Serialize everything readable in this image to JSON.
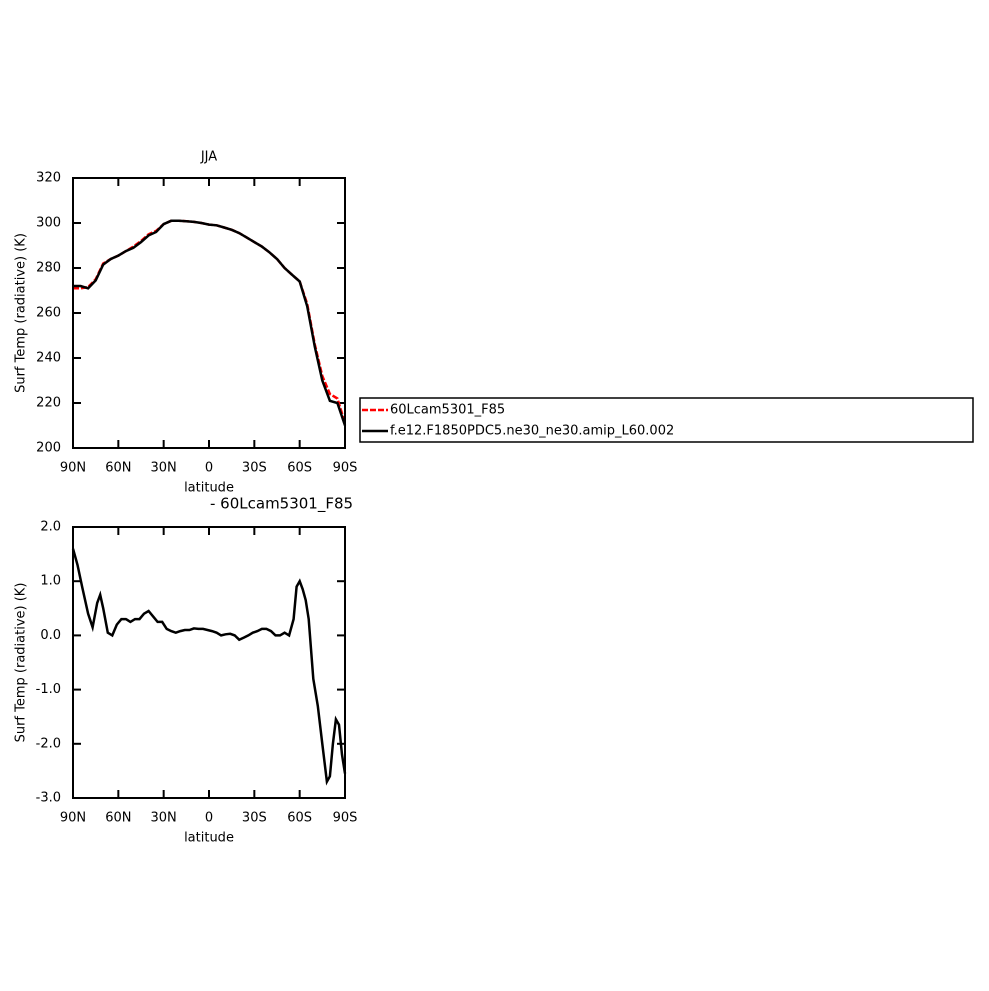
{
  "chart_data": [
    {
      "type": "line",
      "title": "JJA",
      "x_label": "latitude",
      "y_label": "Surf Temp (radiative) (K)",
      "x": [
        90,
        85,
        80,
        75,
        70,
        65,
        60,
        55,
        50,
        45,
        40,
        35,
        30,
        25,
        20,
        15,
        10,
        5,
        0,
        -5,
        -10,
        -15,
        -20,
        -25,
        -30,
        -35,
        -40,
        -45,
        -50,
        -55,
        -60,
        -65,
        -70,
        -75,
        -80,
        -85,
        -90
      ],
      "series": [
        {
          "name": "60Lcam5301_F85",
          "color": "#ff0000",
          "dashed": true,
          "values": [
            271,
            271,
            271.5,
            275,
            282,
            284,
            285.5,
            287.5,
            289.5,
            292,
            295,
            296.5,
            299.5,
            301,
            301,
            300.8,
            300.5,
            300,
            299.3,
            299,
            298,
            297,
            295.5,
            293.5,
            291.5,
            289.5,
            287,
            284,
            280,
            277,
            274,
            264,
            246,
            232,
            224,
            222,
            211
          ]
        },
        {
          "name": "f.e12.F1850PDC5.ne30_ne30.amip_L60.002",
          "color": "#000000",
          "dashed": false,
          "values": [
            272,
            272,
            271,
            274.5,
            281.5,
            284,
            285.5,
            287.5,
            289,
            291.5,
            294.5,
            296,
            299.5,
            301,
            301,
            300.8,
            300.5,
            300,
            299.3,
            299,
            298,
            297,
            295.5,
            293.5,
            291.5,
            289.5,
            287,
            284,
            280,
            277,
            274,
            263,
            245,
            230,
            221,
            220,
            210
          ]
        }
      ],
      "xlim": [
        90,
        -90
      ],
      "xticks": [
        {
          "value": 90,
          "label": "90N"
        },
        {
          "value": 60,
          "label": "60N"
        },
        {
          "value": 30,
          "label": "30N"
        },
        0,
        {
          "value": -30,
          "label": "30S"
        },
        {
          "value": -60,
          "label": "60S"
        },
        {
          "value": -90,
          "label": "90S"
        }
      ],
      "ylim": [
        200,
        320
      ],
      "yticks": [
        200,
        220,
        240,
        260,
        280,
        300,
        320
      ],
      "legend": "right"
    },
    {
      "type": "line",
      "title": "- 60Lcam5301_F85",
      "x_label": "latitude",
      "y_label": "Surf Temp (radiative) (K)",
      "color": "#000000",
      "x": [
        90,
        87,
        84,
        80,
        77,
        74,
        72,
        70,
        67,
        64,
        61,
        58,
        55,
        52,
        49,
        46,
        43,
        40,
        37,
        34,
        31,
        28,
        25,
        22,
        19,
        16,
        13,
        10,
        7,
        4,
        1,
        -2,
        -5,
        -8,
        -11,
        -14,
        -17,
        -20,
        -23,
        -26,
        -29,
        -32,
        -35,
        -38,
        -41,
        -44,
        -47,
        -50,
        -53,
        -56,
        -58,
        -60,
        -62,
        -64,
        -66,
        -69,
        -72,
        -75,
        -78,
        -80,
        -82,
        -84,
        -86,
        -88,
        -90
      ],
      "values": [
        1.6,
        1.3,
        0.9,
        0.4,
        0.15,
        0.6,
        0.75,
        0.5,
        0.05,
        0.0,
        0.2,
        0.3,
        0.3,
        0.25,
        0.3,
        0.3,
        0.4,
        0.45,
        0.35,
        0.25,
        0.25,
        0.12,
        0.08,
        0.05,
        0.08,
        0.1,
        0.1,
        0.13,
        0.12,
        0.12,
        0.1,
        0.08,
        0.05,
        0.0,
        0.02,
        0.03,
        0.0,
        -0.08,
        -0.04,
        0.0,
        0.05,
        0.08,
        0.12,
        0.12,
        0.08,
        0.0,
        0.0,
        0.05,
        0.0,
        0.3,
        0.9,
        1.0,
        0.85,
        0.65,
        0.3,
        -0.8,
        -1.3,
        -2.0,
        -2.7,
        -2.6,
        -2.0,
        -1.55,
        -1.65,
        -2.2,
        -2.55
      ],
      "xlim": [
        90,
        -90
      ],
      "xticks": [
        {
          "value": 90,
          "label": "90N"
        },
        {
          "value": 60,
          "label": "60N"
        },
        {
          "value": 30,
          "label": "30N"
        },
        0,
        {
          "value": -30,
          "label": "30S"
        },
        {
          "value": -60,
          "label": "60S"
        },
        {
          "value": -90,
          "label": "90S"
        }
      ],
      "ylim": [
        -3,
        2
      ],
      "yticks": [
        {
          "value": -3,
          "label": "-3.0"
        },
        {
          "value": -2,
          "label": "-2.0"
        },
        {
          "value": -1,
          "label": "-1.0"
        },
        {
          "value": 0,
          "label": "0.0"
        },
        {
          "value": 1,
          "label": "1.0"
        },
        {
          "value": 2,
          "label": "2.0"
        }
      ]
    }
  ]
}
